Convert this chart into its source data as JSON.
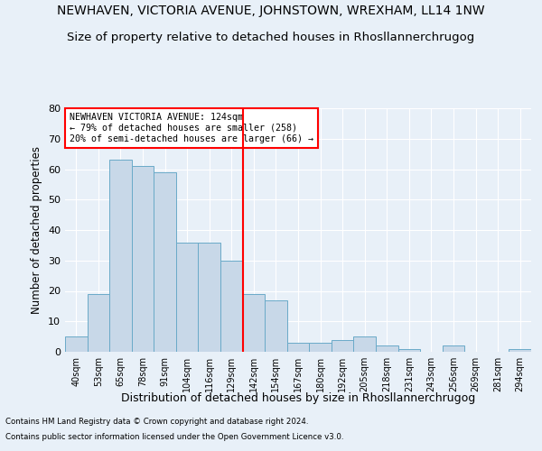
{
  "title": "NEWHAVEN, VICTORIA AVENUE, JOHNSTOWN, WREXHAM, LL14 1NW",
  "subtitle": "Size of property relative to detached houses in Rhosllannerchrugog",
  "xlabel": "Distribution of detached houses by size in Rhosllannerchrugog",
  "ylabel": "Number of detached properties",
  "categories": [
    "40sqm",
    "53sqm",
    "65sqm",
    "78sqm",
    "91sqm",
    "104sqm",
    "116sqm",
    "129sqm",
    "142sqm",
    "154sqm",
    "167sqm",
    "180sqm",
    "192sqm",
    "205sqm",
    "218sqm",
    "231sqm",
    "243sqm",
    "256sqm",
    "269sqm",
    "281sqm",
    "294sqm"
  ],
  "values": [
    5,
    19,
    63,
    61,
    59,
    36,
    36,
    30,
    19,
    17,
    3,
    3,
    4,
    5,
    2,
    1,
    0,
    2,
    0,
    0,
    1
  ],
  "bar_color": "#c8d8e8",
  "bar_edge_color": "#6aaac8",
  "vline_color": "red",
  "vline_pos": 7.5,
  "annotation_text": "NEWHAVEN VICTORIA AVENUE: 124sqm\n← 79% of detached houses are smaller (258)\n20% of semi-detached houses are larger (66) →",
  "annotation_box_color": "white",
  "annotation_box_edge": "red",
  "ylim": [
    0,
    80
  ],
  "yticks": [
    0,
    10,
    20,
    30,
    40,
    50,
    60,
    70,
    80
  ],
  "background_color": "#e8f0f8",
  "plot_bg_color": "#e8f0f8",
  "grid_color": "white",
  "title_fontsize": 10,
  "subtitle_fontsize": 9.5,
  "xlabel_fontsize": 9,
  "ylabel_fontsize": 8.5,
  "footnote1": "Contains HM Land Registry data © Crown copyright and database right 2024.",
  "footnote2": "Contains public sector information licensed under the Open Government Licence v3.0."
}
